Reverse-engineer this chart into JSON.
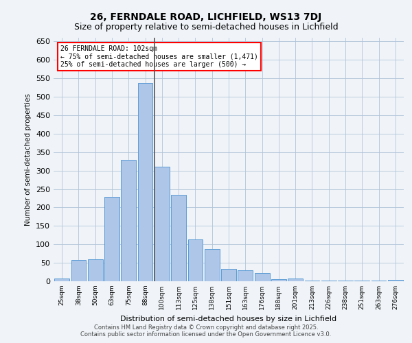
{
  "title1": "26, FERNDALE ROAD, LICHFIELD, WS13 7DJ",
  "title2": "Size of property relative to semi-detached houses in Lichfield",
  "xlabel": "Distribution of semi-detached houses by size in Lichfield",
  "ylabel": "Number of semi-detached properties",
  "categories": [
    "25sqm",
    "38sqm",
    "50sqm",
    "63sqm",
    "75sqm",
    "88sqm",
    "100sqm",
    "113sqm",
    "125sqm",
    "138sqm",
    "151sqm",
    "163sqm",
    "176sqm",
    "188sqm",
    "201sqm",
    "213sqm",
    "226sqm",
    "238sqm",
    "251sqm",
    "263sqm",
    "276sqm"
  ],
  "values": [
    8,
    58,
    60,
    228,
    330,
    538,
    310,
    234,
    113,
    87,
    33,
    30,
    22,
    5,
    7,
    2,
    1,
    1,
    1,
    1,
    3
  ],
  "bar_color": "#aec6e8",
  "bar_edge_color": "#5b9bd5",
  "property_line_x": 5.85,
  "property_value": "102sqm",
  "legend_title": "26 FERNDALE ROAD: 102sqm",
  "legend_line1": "← 75% of semi-detached houses are smaller (1,471)",
  "legend_line2": "25% of semi-detached houses are larger (500) →",
  "footer1": "Contains HM Land Registry data © Crown copyright and database right 2025.",
  "footer2": "Contains public sector information licensed under the Open Government Licence v3.0.",
  "background_color": "#f0f4f8",
  "plot_bg_color": "#f0f4f8",
  "ylim": [
    0,
    660
  ],
  "yticks": [
    0,
    50,
    100,
    150,
    200,
    250,
    300,
    350,
    400,
    450,
    500,
    550,
    600,
    650
  ]
}
